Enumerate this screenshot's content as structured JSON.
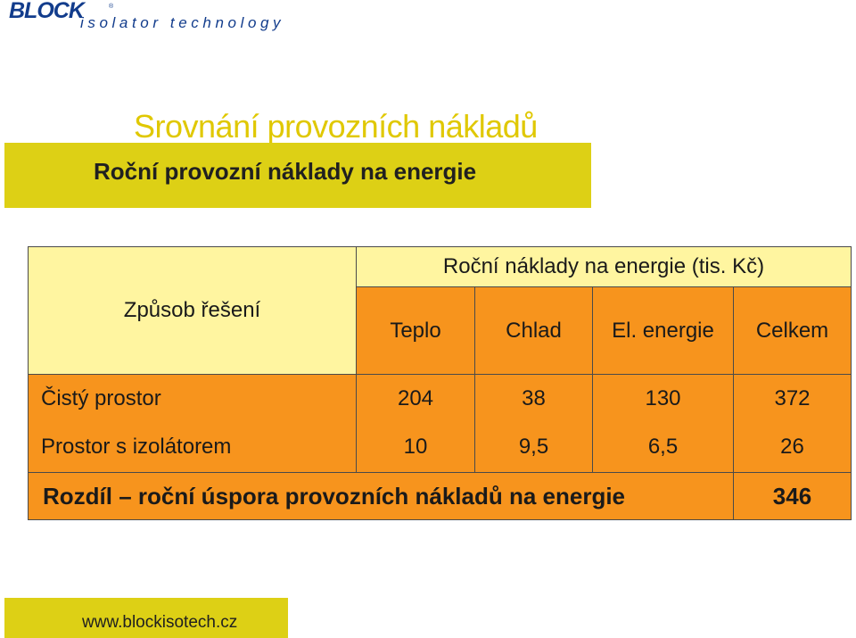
{
  "logo": {
    "brand": "BLOCK",
    "registered": "®",
    "tagline": "isolator technology",
    "colors": {
      "brand": "#123c8c"
    }
  },
  "title": "Srovnání provozních nákladů",
  "subtitle": "Roční provozní náklady na energie",
  "table": {
    "method_header": "Způsob řešení",
    "units_header": "Roční náklady na energie (tis. Kč)",
    "columns": [
      "Teplo",
      "Chlad",
      "El. energie",
      "Celkem"
    ],
    "rows": [
      {
        "label": "Čistý prostor",
        "values": [
          "204",
          "38",
          "130",
          "372"
        ]
      },
      {
        "label": "Prostor s izolátorem",
        "values": [
          "10",
          "9,5",
          "6,5",
          "26"
        ]
      }
    ],
    "difference": {
      "label": "Rozdíl – roční úspora provozních nákladů na energie",
      "value": "346"
    }
  },
  "footer": {
    "url": "www.blockisotech.cz"
  },
  "colors": {
    "yellow_band": "#ddd015",
    "title_yellow": "#e0c800",
    "light_yellow": "#fff5a0",
    "orange": "#f7941d"
  }
}
